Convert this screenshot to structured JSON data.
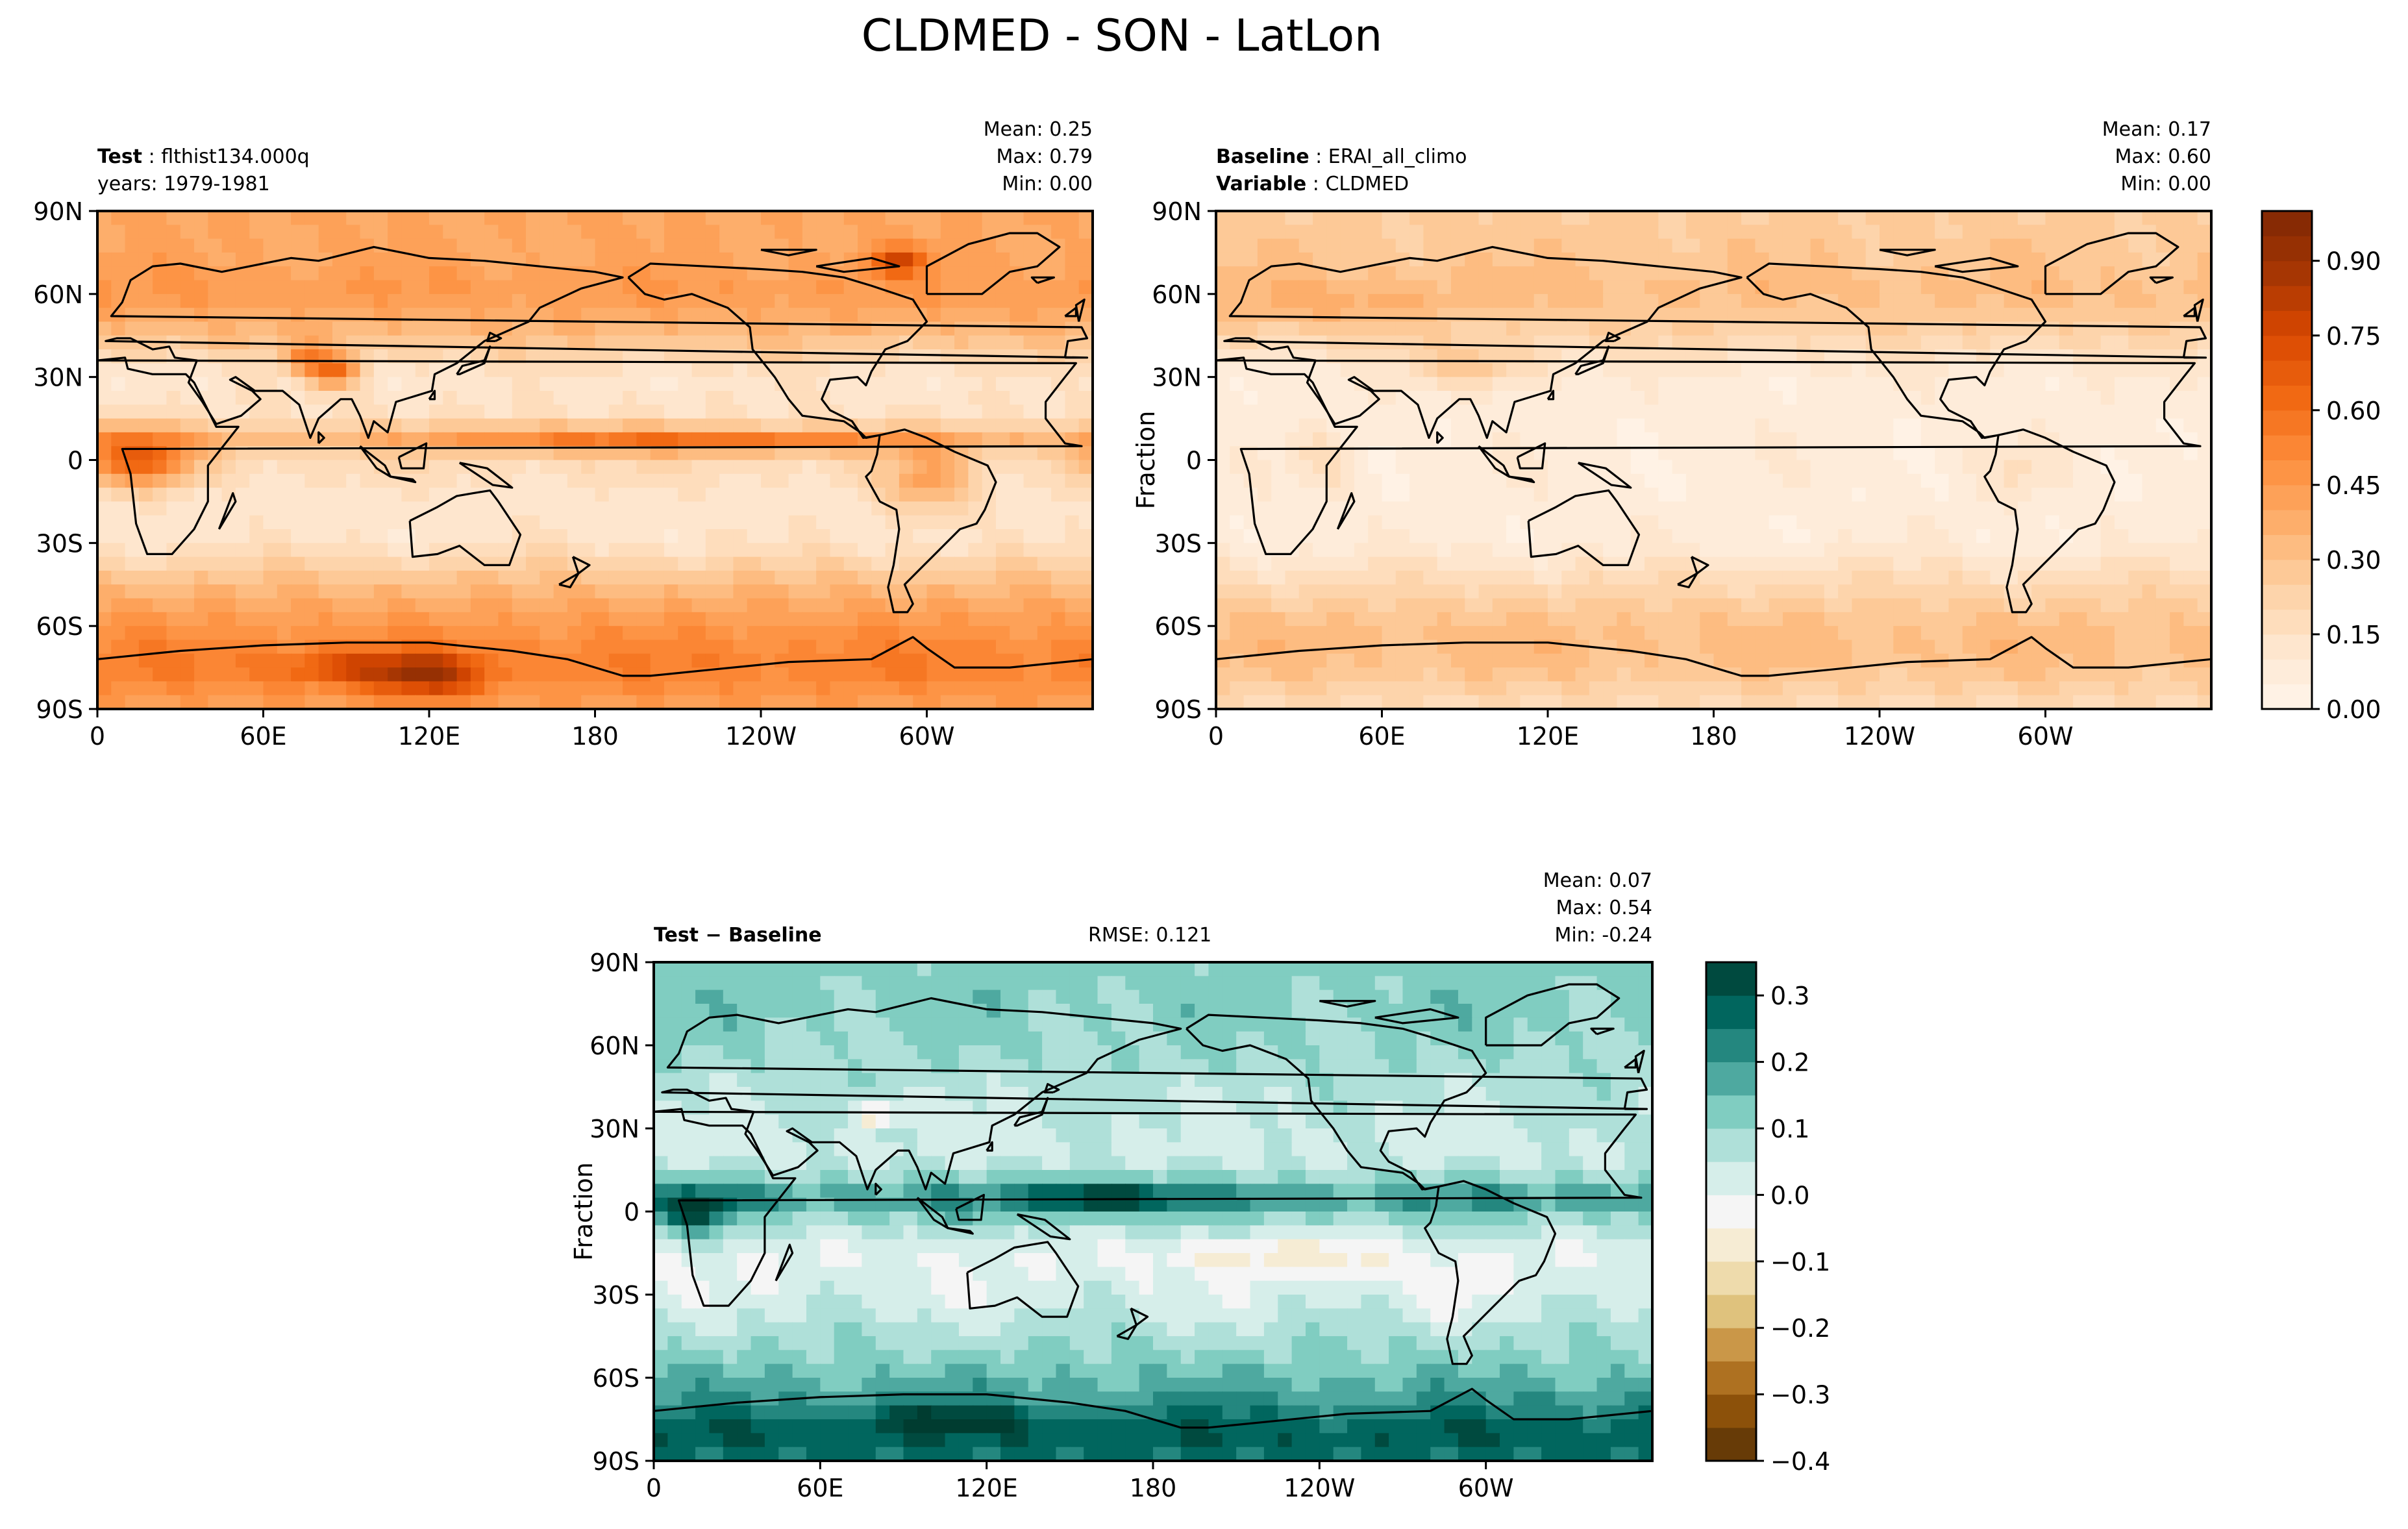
{
  "figure": {
    "title": "CLDMED - SON - LatLon"
  },
  "colors": {
    "land_outline": "#000000",
    "orange_scale": [
      "#fff5eb",
      "#fee6ce",
      "#fdd0a2",
      "#fdae6b",
      "#fd8d3c",
      "#f16913",
      "#d94801",
      "#a63603",
      "#7f2704"
    ],
    "diff_scale": [
      "#543005",
      "#8c510a",
      "#bf812d",
      "#dfc27d",
      "#f6e8c3",
      "#f5f5f5",
      "#c7eae5",
      "#80cdc1",
      "#35978f",
      "#01665e",
      "#003c30"
    ]
  },
  "chart_data": [
    {
      "type": "heatmap",
      "panel": "test",
      "label_bold": "Test",
      "label_value": "flthist134.000q",
      "subtitle": "years: 1979-1981",
      "stats": {
        "mean": "0.25",
        "max": "0.79",
        "min": "0.00"
      },
      "stat_labels": {
        "mean": "Mean:",
        "max": "Max:",
        "min": "Min:"
      },
      "ylabel": "",
      "x_ticks": [
        "0",
        "60E",
        "120E",
        "180",
        "120W",
        "60W"
      ],
      "y_ticks": [
        "90N",
        "60N",
        "30N",
        "0",
        "30S",
        "60S",
        "90S"
      ],
      "lon_range": [
        0,
        360
      ],
      "lat_range": [
        -90,
        90
      ],
      "field": {
        "base": 0.2,
        "lat_profile": [
          [
            -90,
            0.42
          ],
          [
            -75,
            0.55
          ],
          [
            -65,
            0.5
          ],
          [
            -55,
            0.42
          ],
          [
            -45,
            0.32
          ],
          [
            -30,
            0.14
          ],
          [
            -15,
            0.12
          ],
          [
            0,
            0.2
          ],
          [
            8,
            0.34
          ],
          [
            15,
            0.16
          ],
          [
            30,
            0.12
          ],
          [
            45,
            0.32
          ],
          [
            60,
            0.45
          ],
          [
            75,
            0.4
          ],
          [
            90,
            0.4
          ]
        ],
        "blobs": [
          [
            15,
            0,
            18,
            10,
            0.45
          ],
          [
            85,
            32,
            10,
            6,
            0.45
          ],
          [
            75,
            37,
            8,
            5,
            0.25
          ],
          [
            160,
            8,
            45,
            5,
            0.15
          ],
          [
            235,
            7,
            60,
            4,
            0.25
          ],
          [
            300,
            -8,
            15,
            12,
            0.25
          ],
          [
            290,
            72,
            10,
            5,
            0.35
          ],
          [
            120,
            -78,
            20,
            8,
            0.35
          ],
          [
            90,
            -75,
            25,
            6,
            0.2
          ]
        ]
      }
    },
    {
      "type": "heatmap",
      "panel": "baseline",
      "label_bold": "Baseline",
      "label_value": "ERAI_all_climo",
      "subtitle_bold": "Variable",
      "subtitle_value": "CLDMED",
      "stats": {
        "mean": "0.17",
        "max": "0.60",
        "min": "0.00"
      },
      "stat_labels": {
        "mean": "Mean:",
        "max": "Max:",
        "min": "Min:"
      },
      "ylabel": "Fraction",
      "x_ticks": [
        "0",
        "60E",
        "120E",
        "180",
        "120W",
        "60W"
      ],
      "y_ticks": [
        "90N",
        "60N",
        "30N",
        "0",
        "30S",
        "60S",
        "90S"
      ],
      "lon_range": [
        0,
        360
      ],
      "lat_range": [
        -90,
        90
      ],
      "colorbar": {
        "ticks": [
          "0.00",
          "0.15",
          "0.30",
          "0.45",
          "0.60",
          "0.75",
          "0.90"
        ],
        "tick_values": [
          0,
          0.15,
          0.3,
          0.45,
          0.6,
          0.75,
          0.9
        ],
        "range": [
          0,
          1.0
        ],
        "levels": 20
      },
      "field": {
        "base": 0.12,
        "lat_profile": [
          [
            -90,
            0.18
          ],
          [
            -75,
            0.3
          ],
          [
            -65,
            0.32
          ],
          [
            -55,
            0.28
          ],
          [
            -45,
            0.2
          ],
          [
            -30,
            0.08
          ],
          [
            -15,
            0.07
          ],
          [
            0,
            0.08
          ],
          [
            15,
            0.07
          ],
          [
            30,
            0.08
          ],
          [
            45,
            0.22
          ],
          [
            60,
            0.32
          ],
          [
            75,
            0.28
          ],
          [
            90,
            0.26
          ]
        ],
        "blobs": [
          [
            95,
            33,
            20,
            8,
            0.18
          ],
          [
            40,
            0,
            10,
            12,
            0.1
          ],
          [
            290,
            -5,
            10,
            10,
            0.08
          ],
          [
            45,
            55,
            40,
            8,
            0.08
          ]
        ]
      }
    },
    {
      "type": "heatmap",
      "panel": "difference",
      "label_bold": "Test − Baseline",
      "rmse": "RMSE: 0.121",
      "stats": {
        "mean": "0.07",
        "max": "0.54",
        "min": "-0.24"
      },
      "stat_labels": {
        "mean": "Mean:",
        "max": "Max:",
        "min": "Min:"
      },
      "ylabel": "Fraction",
      "x_ticks": [
        "0",
        "60E",
        "120E",
        "180",
        "120W",
        "60W"
      ],
      "y_ticks": [
        "90N",
        "60N",
        "30N",
        "0",
        "30S",
        "60S",
        "90S"
      ],
      "lon_range": [
        0,
        360
      ],
      "lat_range": [
        -90,
        90
      ],
      "colorbar": {
        "ticks": [
          "0.3",
          "0.2",
          "0.1",
          "0.0",
          "−0.1",
          "−0.2",
          "−0.3",
          "−0.4"
        ],
        "tick_values": [
          0.3,
          0.2,
          0.1,
          0.0,
          -0.1,
          -0.2,
          -0.3,
          -0.4
        ],
        "range": [
          -0.4,
          0.35
        ],
        "levels": 15
      },
      "field": {
        "base": 0.05,
        "lat_profile": [
          [
            -90,
            0.25
          ],
          [
            -80,
            0.3
          ],
          [
            -65,
            0.18
          ],
          [
            -50,
            0.1
          ],
          [
            -30,
            0.02
          ],
          [
            -15,
            0.0
          ],
          [
            -5,
            0.08
          ],
          [
            0,
            0.14
          ],
          [
            5,
            0.22
          ],
          [
            10,
            0.12
          ],
          [
            20,
            0.03
          ],
          [
            40,
            0.06
          ],
          [
            60,
            0.1
          ],
          [
            75,
            0.12
          ],
          [
            90,
            0.12
          ]
        ],
        "blobs": [
          [
            160,
            5,
            25,
            6,
            0.2
          ],
          [
            80,
            35,
            6,
            4,
            -0.22
          ],
          [
            220,
            -15,
            30,
            8,
            -0.08
          ],
          [
            105,
            -75,
            25,
            4,
            0.15
          ],
          [
            15,
            0,
            12,
            8,
            0.2
          ],
          [
            255,
            -20,
            15,
            6,
            -0.06
          ],
          [
            290,
            -30,
            8,
            10,
            -0.05
          ]
        ]
      }
    }
  ]
}
